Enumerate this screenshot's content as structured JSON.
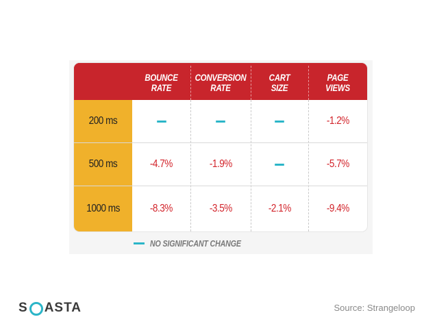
{
  "table": {
    "columns": [
      {
        "line1": "BOUNCE",
        "line2": "RATE"
      },
      {
        "line1": "CONVERSION",
        "line2": "RATE"
      },
      {
        "line1": "CART",
        "line2": "SIZE"
      },
      {
        "line1": "PAGE",
        "line2": "VIEWS"
      }
    ],
    "rows": [
      {
        "label": "200 ms",
        "values": [
          "",
          "",
          "",
          "-1.2%"
        ],
        "no_change": [
          true,
          true,
          true,
          false
        ]
      },
      {
        "label": "500 ms",
        "values": [
          "-4.7%",
          "-1.9%",
          "",
          "-5.7%"
        ],
        "no_change": [
          false,
          false,
          true,
          false
        ]
      },
      {
        "label": "1000 ms",
        "values": [
          "-8.3%",
          "-3.5%",
          "-2.1%",
          "-9.4%"
        ],
        "no_change": [
          false,
          false,
          false,
          false
        ]
      }
    ],
    "legend_text": "NO SIGNIFICANT CHANGE"
  },
  "colors": {
    "header_red": "#c8252c",
    "row_label_yellow": "#f0b12b",
    "value_red": "#d2232a",
    "no_change_teal": "#2bb5c8"
  },
  "footer": {
    "logo_before": "S",
    "logo_after": "ASTA",
    "source": "Source: Strangeloop"
  }
}
